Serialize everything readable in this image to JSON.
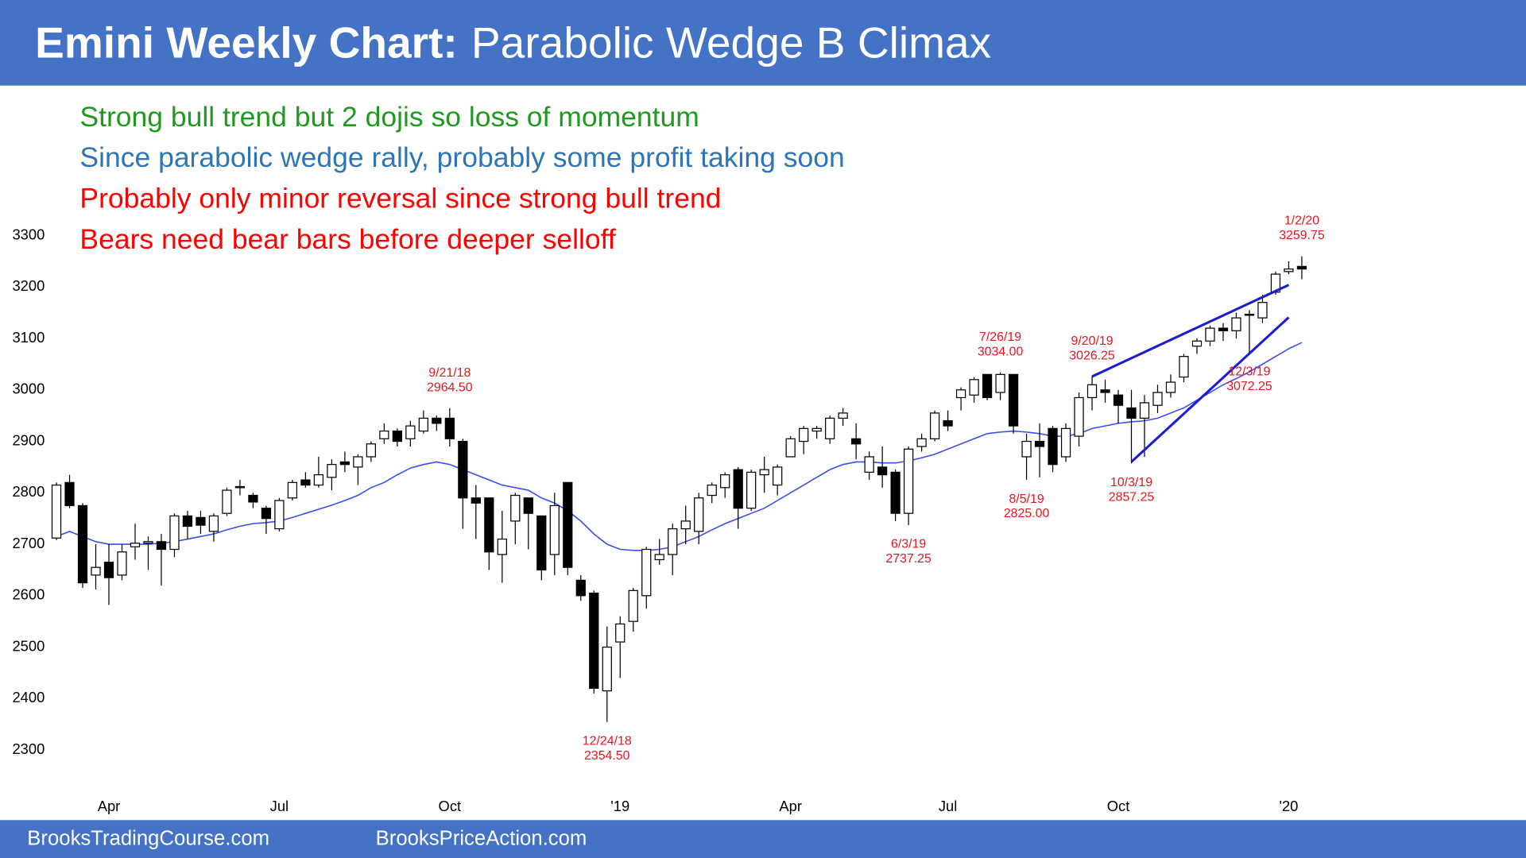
{
  "chart_data": {
    "type": "candlestick",
    "title": "Emini Weekly Chart:",
    "subtitle": "Parabolic Wedge B Climax",
    "notes": [
      {
        "text": "Strong bull trend but 2 dojis so loss of momentum",
        "color": "#1f9a1f"
      },
      {
        "text": "Since parabolic wedge rally, probably some profit taking soon",
        "color": "#2e75b6"
      },
      {
        "text": "Probably only minor reversal since strong bull trend",
        "color": "#ff0000"
      },
      {
        "text": "Bears need bear bars before deeper selloff",
        "color": "#ff0000"
      }
    ],
    "categories": [
      null,
      null,
      null,
      null,
      "Apr",
      null,
      null,
      null,
      null,
      null,
      null,
      null,
      null,
      null,
      null,
      null,
      null,
      "Jul",
      null,
      null,
      null,
      null,
      null,
      null,
      null,
      null,
      null,
      null,
      null,
      null,
      "Oct",
      null,
      null,
      null,
      null,
      null,
      null,
      null,
      null,
      null,
      null,
      null,
      null,
      "'19",
      null,
      null,
      null,
      null,
      null,
      null,
      null,
      null,
      null,
      null,
      null,
      null,
      "Apr",
      null,
      null,
      null,
      null,
      null,
      null,
      null,
      null,
      null,
      null,
      null,
      "Jul",
      null,
      null,
      null,
      null,
      null,
      null,
      null,
      null,
      null,
      null,
      null,
      null,
      "Oct",
      null,
      null,
      null,
      null,
      null,
      null,
      null,
      null,
      null,
      null,
      null,
      null,
      "'20",
      null
    ],
    "open": [
      2712,
      2820,
      2775,
      2640,
      2665,
      2640,
      2695,
      2702,
      2705,
      2690,
      2755,
      2752,
      2725,
      2760,
      2810,
      2795,
      2770,
      2730,
      2790,
      2825,
      2815,
      2830,
      2860,
      2850,
      2870,
      2905,
      2920,
      2905,
      2920,
      2945,
      2945,
      2900,
      2790,
      2790,
      2680,
      2745,
      2790,
      2755,
      2680,
      2820,
      2630,
      2605,
      2415,
      2510,
      2550,
      2600,
      2670,
      2680,
      2730,
      2725,
      2795,
      2810,
      2845,
      2770,
      2835,
      2815,
      2870,
      2900,
      2920,
      2905,
      2945,
      2905,
      2840,
      2850,
      2840,
      2760,
      2890,
      2905,
      2940,
      2985,
      2990,
      3030,
      2995,
      3030,
      2870,
      2900,
      2925,
      2870,
      2910,
      2985,
      3000,
      2990,
      2965,
      2945,
      2970,
      2995,
      3025,
      3085,
      3095,
      3120,
      3115,
      3145,
      3140,
      3190,
      3230,
      3240
    ],
    "high": [
      2820,
      2835,
      2780,
      2700,
      2700,
      2700,
      2740,
      2715,
      2720,
      2760,
      2765,
      2765,
      2760,
      2810,
      2825,
      2800,
      2775,
      2790,
      2825,
      2840,
      2870,
      2865,
      2880,
      2875,
      2900,
      2935,
      2925,
      2940,
      2960,
      2950,
      2964.5,
      2905,
      2815,
      2790,
      2765,
      2800,
      2790,
      2755,
      2800,
      2820,
      2640,
      2610,
      2540,
      2560,
      2615,
      2695,
      2710,
      2740,
      2775,
      2800,
      2820,
      2840,
      2850,
      2845,
      2870,
      2855,
      2910,
      2930,
      2930,
      2950,
      2965,
      2935,
      2880,
      2890,
      2845,
      2890,
      2915,
      2960,
      2960,
      3005,
      3025,
      3030,
      3034,
      3030,
      2915,
      2935,
      2930,
      2935,
      2995,
      3026.25,
      3020,
      3000,
      3000,
      2990,
      3010,
      3030,
      3070,
      3100,
      3125,
      3130,
      3150,
      3155,
      3185,
      3230,
      3250,
      3259.75
    ],
    "low": [
      2708,
      2770,
      2615,
      2612,
      2582,
      2630,
      2670,
      2650,
      2620,
      2675,
      2710,
      2720,
      2705,
      2755,
      2795,
      2770,
      2720,
      2725,
      2785,
      2810,
      2810,
      2805,
      2840,
      2815,
      2860,
      2895,
      2890,
      2890,
      2915,
      2920,
      2890,
      2730,
      2710,
      2650,
      2625,
      2700,
      2690,
      2630,
      2640,
      2640,
      2590,
      2410,
      2354.5,
      2440,
      2530,
      2575,
      2660,
      2640,
      2700,
      2700,
      2780,
      2790,
      2730,
      2765,
      2800,
      2795,
      2870,
      2875,
      2905,
      2895,
      2930,
      2865,
      2825,
      2810,
      2745,
      2737.25,
      2880,
      2900,
      2920,
      2960,
      2975,
      2980,
      2980,
      2915,
      2825,
      2830,
      2840,
      2860,
      2890,
      2960,
      2975,
      2935,
      2857.25,
      2870,
      2955,
      2985,
      3015,
      3070,
      3085,
      3095,
      3100,
      3072.25,
      3130,
      3185,
      3225,
      3215
    ],
    "close": [
      2815,
      2775,
      2625,
      2655,
      2635,
      2685,
      2702,
      2705,
      2690,
      2755,
      2735,
      2737,
      2755,
      2805,
      2812,
      2782,
      2750,
      2785,
      2820,
      2815,
      2835,
      2855,
      2855,
      2870,
      2895,
      2920,
      2900,
      2930,
      2945,
      2935,
      2905,
      2790,
      2780,
      2685,
      2710,
      2795,
      2760,
      2650,
      2775,
      2655,
      2600,
      2420,
      2500,
      2545,
      2610,
      2690,
      2680,
      2730,
      2745,
      2790,
      2815,
      2835,
      2770,
      2840,
      2845,
      2850,
      2905,
      2925,
      2925,
      2945,
      2955,
      2895,
      2870,
      2835,
      2760,
      2885,
      2905,
      2955,
      2930,
      3000,
      3020,
      2985,
      3030,
      2930,
      2900,
      2890,
      2855,
      2925,
      2985,
      3010,
      2995,
      2970,
      2945,
      2975,
      2995,
      3015,
      3065,
      3095,
      3120,
      3115,
      3140,
      3147,
      3170,
      3225,
      3235,
      3235
    ],
    "up_color": "#ffffff",
    "down_color": "#000000",
    "moving_average": {
      "color": "#3a4ef0",
      "values": [
        2715,
        2725,
        2715,
        2705,
        2700,
        2700,
        2700,
        2700,
        2702,
        2705,
        2710,
        2715,
        2720,
        2728,
        2735,
        2740,
        2742,
        2745,
        2752,
        2760,
        2768,
        2776,
        2785,
        2795,
        2810,
        2820,
        2835,
        2848,
        2855,
        2860,
        2855,
        2845,
        2835,
        2825,
        2815,
        2810,
        2805,
        2790,
        2780,
        2765,
        2745,
        2720,
        2700,
        2690,
        2688,
        2688,
        2690,
        2695,
        2705,
        2715,
        2728,
        2740,
        2750,
        2760,
        2770,
        2785,
        2800,
        2815,
        2830,
        2845,
        2855,
        2860,
        2860,
        2858,
        2858,
        2862,
        2868,
        2875,
        2885,
        2895,
        2905,
        2915,
        2918,
        2920,
        2918,
        2915,
        2910,
        2910,
        2915,
        2925,
        2930,
        2935,
        2938,
        2940,
        2945,
        2955,
        2965,
        2980,
        2995,
        3010,
        3022,
        3035,
        3050,
        3065,
        3080,
        3092
      ]
    },
    "trend_lines": [
      {
        "color": "#1c1ccf",
        "x": [
          79,
          94
        ],
        "y": [
          3026,
          3204
        ]
      },
      {
        "color": "#1c1ccf",
        "x": [
          82,
          94
        ],
        "y": [
          2860,
          3141
        ]
      }
    ],
    "annotations": [
      {
        "date": "9/21/18",
        "price": "2964.50",
        "candle": 30,
        "position": "above"
      },
      {
        "date": "12/24/18",
        "price": "2354.50",
        "candle": 42,
        "position": "below"
      },
      {
        "date": "6/3/19",
        "price": "2737.25",
        "candle": 65,
        "position": "below"
      },
      {
        "date": "7/26/19",
        "price": "3034.00",
        "candle": 72,
        "position": "above"
      },
      {
        "date": "8/5/19",
        "price": "2825.00",
        "candle": 74,
        "position": "below"
      },
      {
        "date": "9/20/19",
        "price": "3026.25",
        "candle": 79,
        "position": "above"
      },
      {
        "date": "10/3/19",
        "price": "2857.25",
        "candle": 82,
        "position": "below"
      },
      {
        "date": "12/3/19",
        "price": "3072.25",
        "candle": 91,
        "position": "below"
      },
      {
        "date": "1/2/20",
        "price": "3259.75",
        "candle": 95,
        "position": "above"
      }
    ],
    "annotation_color": "#e8141c",
    "ylim": [
      2230,
      3340
    ],
    "yticks": [
      2300,
      2400,
      2500,
      2600,
      2700,
      2800,
      2900,
      3000,
      3100,
      3200,
      3300
    ]
  },
  "footer": [
    "BrooksTradingCourse.com",
    "BrooksPriceAction.com"
  ]
}
